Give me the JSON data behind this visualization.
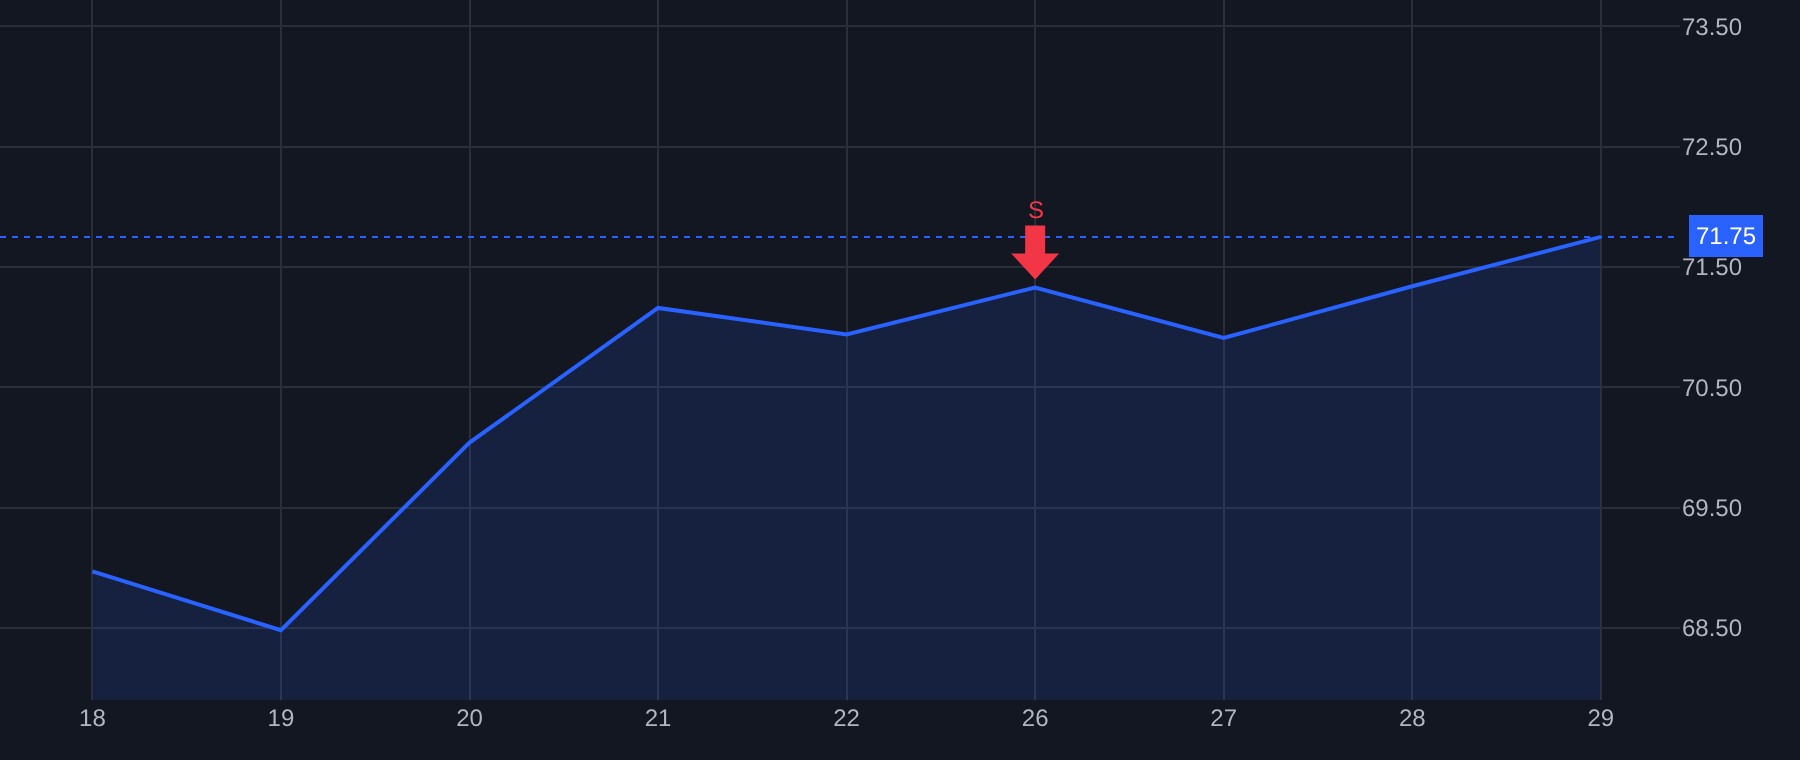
{
  "chart_data": {
    "type": "area",
    "categories": [
      "18",
      "19",
      "20",
      "21",
      "22",
      "26",
      "27",
      "28",
      "29"
    ],
    "values": [
      68.97,
      68.48,
      70.04,
      71.16,
      70.94,
      71.33,
      70.91,
      71.34,
      71.75
    ],
    "color": "#2962ff",
    "ylim": [
      67.9,
      73.72
    ],
    "yticks": [
      {
        "value": 68.5,
        "label": "68.50"
      },
      {
        "value": 69.5,
        "label": "69.50"
      },
      {
        "value": 70.5,
        "label": "70.50"
      },
      {
        "value": 71.5,
        "label": "71.50"
      },
      {
        "value": 72.5,
        "label": "72.50"
      },
      {
        "value": 73.5,
        "label": "73.50"
      }
    ],
    "grid": true,
    "ref_lines": [
      {
        "axis": "y",
        "value": 71.75,
        "label": "71.75",
        "color": "#2962ff",
        "line_style": "dotted"
      }
    ],
    "annotations": [
      {
        "text": "S",
        "x": "26",
        "y": 71.33
      }
    ]
  }
}
